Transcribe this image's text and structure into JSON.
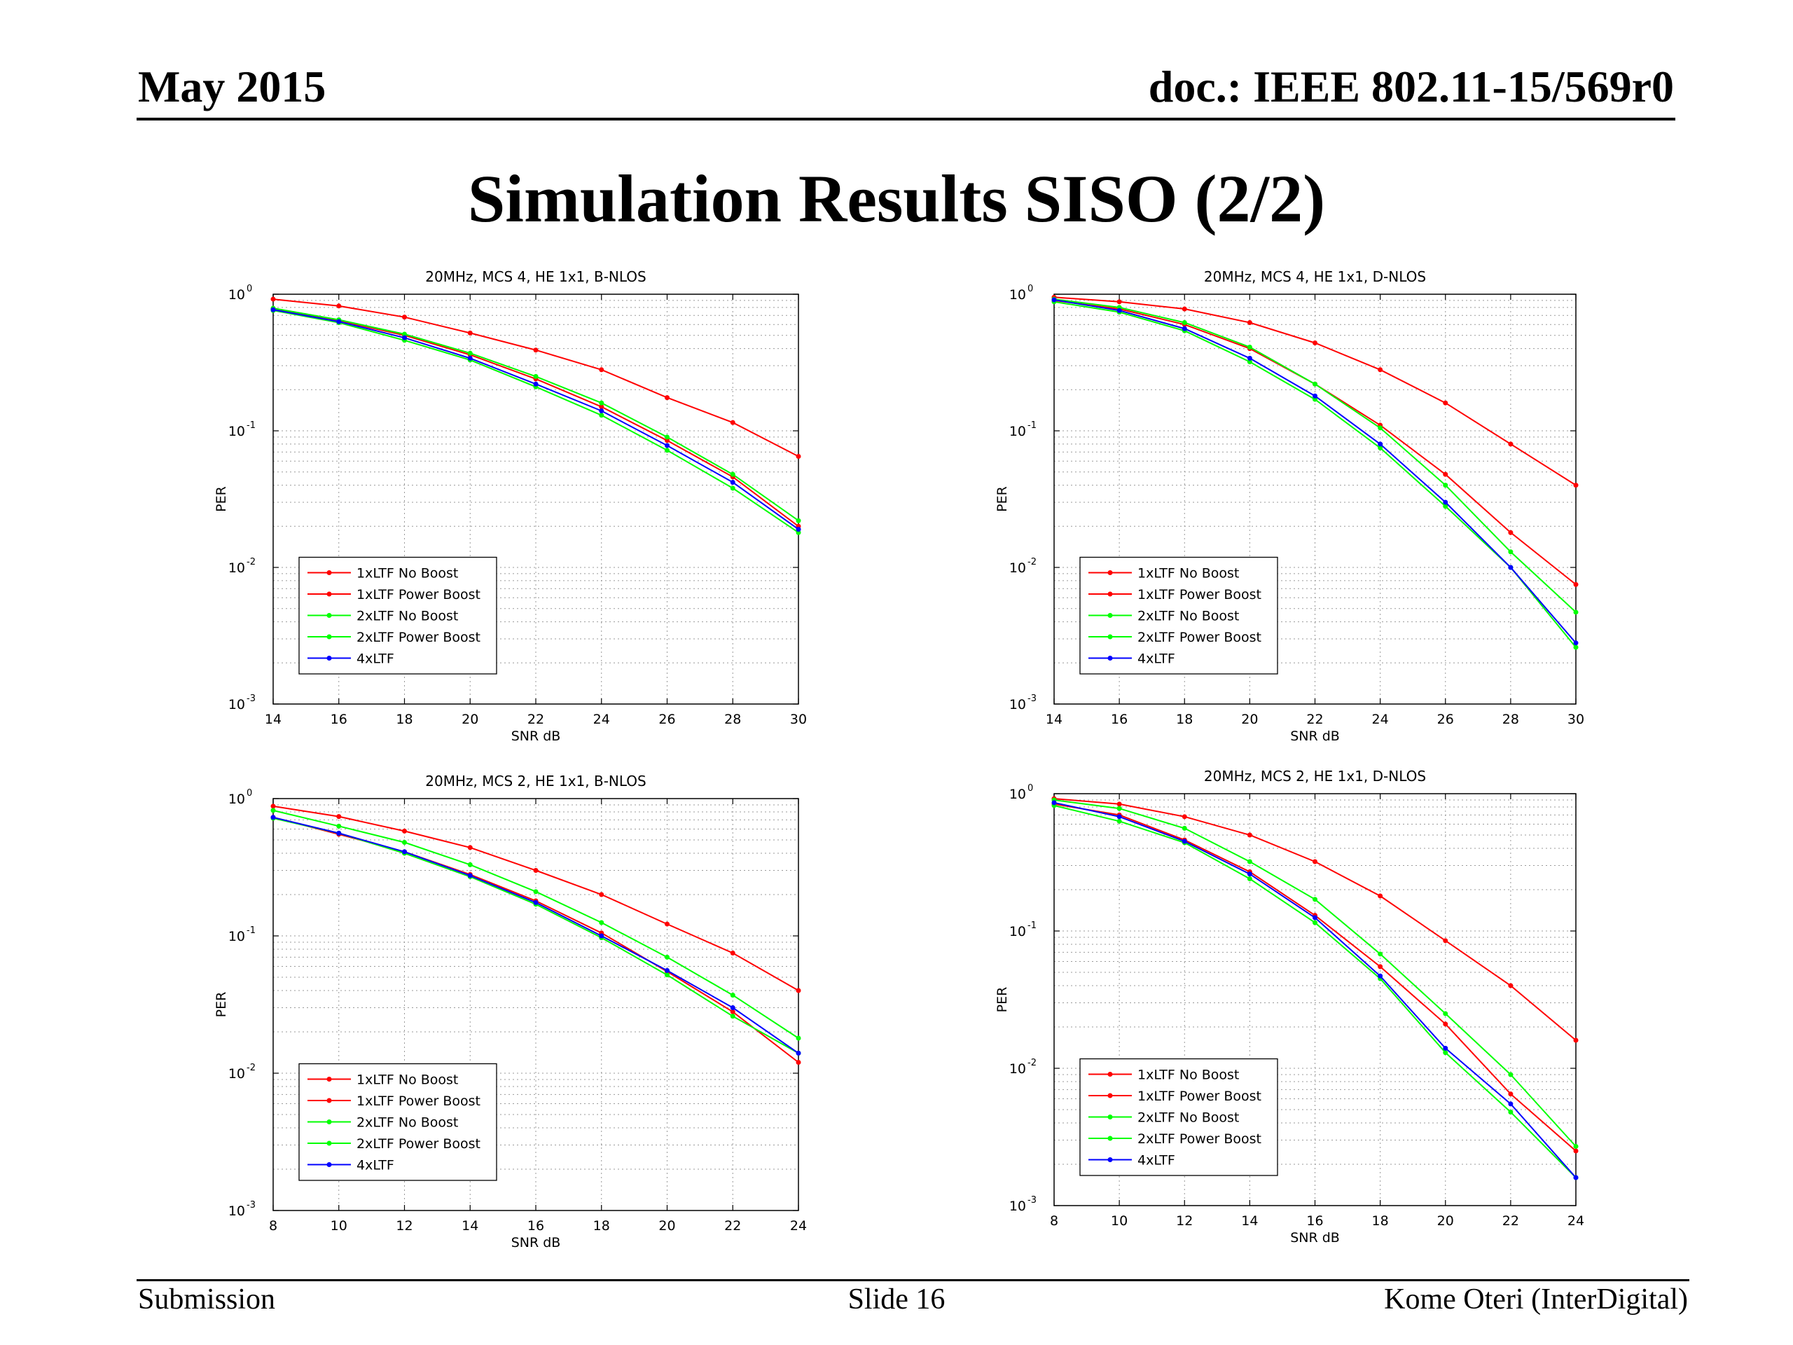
{
  "header": {
    "date": "May 2015",
    "doc": "doc.: IEEE 802.11-15/569r0"
  },
  "slide": {
    "title": "Simulation Results SISO (2/2)"
  },
  "footer": {
    "left": "Submission",
    "center": "Slide 16",
    "right": "Kome Oteri (InterDigital)"
  },
  "series_colors": {
    "1xLTF No Boost": "#ff0000",
    "1xLTF Power Boost": "#ff0000",
    "2xLTF No Boost": "#00ff00",
    "2xLTF Power Boost": "#00ff00",
    "4xLTF": "#0000ff"
  },
  "chart_data": [
    {
      "type": "line",
      "title": "20MHz, MCS 4, HE 1x1, B-NLOS",
      "xlabel": "SNR dB",
      "ylabel": "PER",
      "yscale": "log",
      "xlim": [
        14,
        30
      ],
      "ylim": [
        0.001,
        1
      ],
      "xticks": [
        14,
        16,
        18,
        20,
        22,
        24,
        26,
        28,
        30
      ],
      "yticks": [
        {
          "value": 1,
          "label": "10",
          "exp": "0"
        },
        {
          "value": 0.1,
          "label": "10",
          "exp": "-1"
        },
        {
          "value": 0.01,
          "label": "10",
          "exp": "-2"
        },
        {
          "value": 0.001,
          "label": "10",
          "exp": "-3"
        }
      ],
      "grid": true,
      "legend_position": "bottom-left",
      "x": [
        14,
        16,
        18,
        20,
        22,
        24,
        26,
        28,
        30
      ],
      "series": [
        {
          "name": "1xLTF No Boost",
          "values": [
            0.92,
            0.82,
            0.68,
            0.52,
            0.39,
            0.28,
            0.175,
            0.115,
            0.065
          ]
        },
        {
          "name": "1xLTF Power Boost",
          "values": [
            0.78,
            0.64,
            0.5,
            0.36,
            0.24,
            0.15,
            0.085,
            0.046,
            0.02
          ]
        },
        {
          "name": "2xLTF No Boost",
          "values": [
            0.79,
            0.65,
            0.51,
            0.37,
            0.25,
            0.16,
            0.09,
            0.048,
            0.022
          ]
        },
        {
          "name": "2xLTF Power Boost",
          "values": [
            0.76,
            0.62,
            0.46,
            0.33,
            0.21,
            0.13,
            0.072,
            0.038,
            0.018
          ]
        },
        {
          "name": "4xLTF",
          "values": [
            0.77,
            0.63,
            0.48,
            0.34,
            0.22,
            0.14,
            0.078,
            0.042,
            0.019
          ]
        }
      ]
    },
    {
      "type": "line",
      "title": "20MHz, MCS 4, HE 1x1, D-NLOS",
      "xlabel": "SNR dB",
      "ylabel": "PER",
      "yscale": "log",
      "xlim": [
        14,
        30
      ],
      "ylim": [
        0.001,
        1
      ],
      "xticks": [
        14,
        16,
        18,
        20,
        22,
        24,
        26,
        28,
        30
      ],
      "yticks": [
        {
          "value": 1,
          "label": "10",
          "exp": "0"
        },
        {
          "value": 0.1,
          "label": "10",
          "exp": "-1"
        },
        {
          "value": 0.01,
          "label": "10",
          "exp": "-2"
        },
        {
          "value": 0.001,
          "label": "10",
          "exp": "-3"
        }
      ],
      "grid": true,
      "legend_position": "bottom-left",
      "x": [
        14,
        16,
        18,
        20,
        22,
        24,
        26,
        28,
        30
      ],
      "series": [
        {
          "name": "1xLTF No Boost",
          "values": [
            0.95,
            0.88,
            0.78,
            0.62,
            0.44,
            0.28,
            0.16,
            0.08,
            0.04
          ]
        },
        {
          "name": "1xLTF Power Boost",
          "values": [
            0.9,
            0.78,
            0.6,
            0.4,
            0.22,
            0.11,
            0.048,
            0.018,
            0.0075
          ]
        },
        {
          "name": "2xLTF No Boost",
          "values": [
            0.92,
            0.8,
            0.62,
            0.41,
            0.22,
            0.105,
            0.04,
            0.013,
            0.0047
          ]
        },
        {
          "name": "2xLTF Power Boost",
          "values": [
            0.88,
            0.74,
            0.54,
            0.32,
            0.17,
            0.075,
            0.028,
            0.01,
            0.0026
          ]
        },
        {
          "name": "4xLTF",
          "values": [
            0.91,
            0.76,
            0.56,
            0.34,
            0.18,
            0.08,
            0.03,
            0.01,
            0.0028
          ]
        }
      ]
    },
    {
      "type": "line",
      "title": "20MHz, MCS 2, HE 1x1, B-NLOS",
      "xlabel": "SNR dB",
      "ylabel": "PER",
      "yscale": "log",
      "xlim": [
        8,
        24
      ],
      "ylim": [
        0.001,
        1
      ],
      "xticks": [
        8,
        10,
        12,
        14,
        16,
        18,
        20,
        22,
        24
      ],
      "yticks": [
        {
          "value": 1,
          "label": "10",
          "exp": "0"
        },
        {
          "value": 0.1,
          "label": "10",
          "exp": "-1"
        },
        {
          "value": 0.01,
          "label": "10",
          "exp": "-2"
        },
        {
          "value": 0.001,
          "label": "10",
          "exp": "-3"
        }
      ],
      "grid": true,
      "legend_position": "bottom-left",
      "x": [
        8,
        10,
        12,
        14,
        16,
        18,
        20,
        22,
        24
      ],
      "series": [
        {
          "name": "1xLTF No Boost",
          "values": [
            0.88,
            0.74,
            0.58,
            0.44,
            0.3,
            0.2,
            0.122,
            0.075,
            0.04
          ]
        },
        {
          "name": "1xLTF Power Boost",
          "values": [
            0.73,
            0.55,
            0.41,
            0.28,
            0.18,
            0.105,
            0.055,
            0.028,
            0.012
          ]
        },
        {
          "name": "2xLTF No Boost",
          "values": [
            0.82,
            0.63,
            0.48,
            0.33,
            0.21,
            0.125,
            0.07,
            0.037,
            0.018
          ]
        },
        {
          "name": "2xLTF Power Boost",
          "values": [
            0.72,
            0.56,
            0.4,
            0.27,
            0.17,
            0.097,
            0.052,
            0.026,
            0.014
          ]
        },
        {
          "name": "4xLTF",
          "values": [
            0.73,
            0.56,
            0.41,
            0.275,
            0.175,
            0.1,
            0.056,
            0.03,
            0.014
          ]
        }
      ]
    },
    {
      "type": "line",
      "title": "20MHz, MCS 2, HE 1x1, D-NLOS",
      "xlabel": "SNR dB",
      "ylabel": "PER",
      "yscale": "log",
      "xlim": [
        8,
        24
      ],
      "ylim": [
        0.001,
        1
      ],
      "xticks": [
        8,
        10,
        12,
        14,
        16,
        18,
        20,
        22,
        24
      ],
      "yticks": [
        {
          "value": 1,
          "label": "10",
          "exp": "0"
        },
        {
          "value": 0.1,
          "label": "10",
          "exp": "-1"
        },
        {
          "value": 0.01,
          "label": "10",
          "exp": "-2"
        },
        {
          "value": 0.001,
          "label": "10",
          "exp": "-3"
        }
      ],
      "grid": true,
      "legend_position": "bottom-left",
      "x": [
        8,
        10,
        12,
        14,
        16,
        18,
        20,
        22,
        24
      ],
      "series": [
        {
          "name": "1xLTF No Boost",
          "values": [
            0.92,
            0.84,
            0.68,
            0.5,
            0.32,
            0.18,
            0.085,
            0.04,
            0.016
          ]
        },
        {
          "name": "1xLTF Power Boost",
          "values": [
            0.84,
            0.7,
            0.46,
            0.27,
            0.13,
            0.055,
            0.021,
            0.0065,
            0.0025
          ]
        },
        {
          "name": "2xLTF No Boost",
          "values": [
            0.9,
            0.78,
            0.56,
            0.32,
            0.17,
            0.068,
            0.025,
            0.009,
            0.0027
          ]
        },
        {
          "name": "2xLTF Power Boost",
          "values": [
            0.82,
            0.63,
            0.44,
            0.24,
            0.115,
            0.045,
            0.013,
            0.0048,
            0.0016
          ]
        },
        {
          "name": "4xLTF",
          "values": [
            0.86,
            0.68,
            0.45,
            0.26,
            0.125,
            0.047,
            0.014,
            0.0055,
            0.0016
          ]
        }
      ]
    }
  ]
}
